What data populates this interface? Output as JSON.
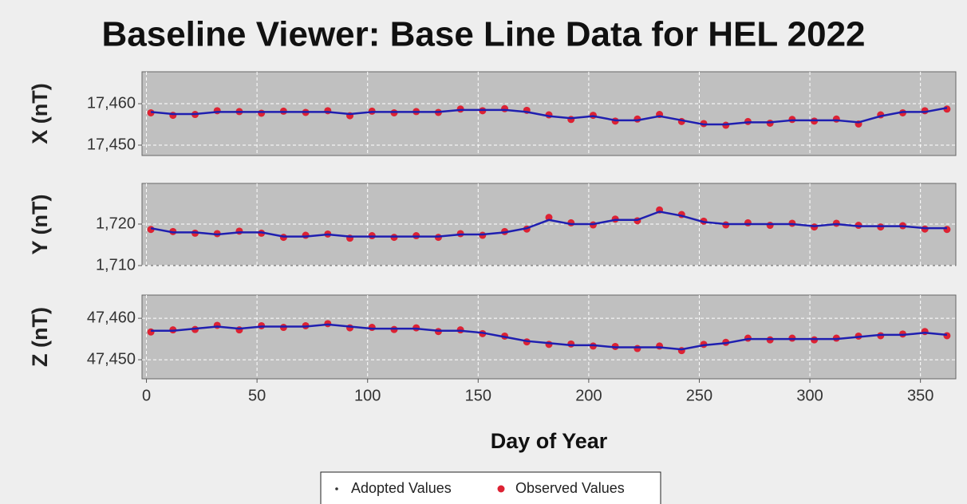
{
  "title": "Baseline Viewer: Base Line Data for HEL 2022",
  "chart_data": [
    {
      "type": "line",
      "ylabel": "X (nT)",
      "x": [
        2,
        12,
        22,
        32,
        42,
        52,
        62,
        72,
        82,
        92,
        102,
        112,
        122,
        132,
        142,
        152,
        162,
        172,
        182,
        192,
        202,
        212,
        222,
        232,
        242,
        252,
        262,
        272,
        282,
        292,
        302,
        312,
        322,
        332,
        342,
        352,
        362
      ],
      "xlim": [
        -2,
        366
      ],
      "xticks": [
        0,
        50,
        100,
        150,
        200,
        250,
        300,
        350
      ],
      "ylim": [
        17447.5,
        17467.7
      ],
      "yticks": [
        {
          "value": 17450,
          "label": "17,450"
        },
        {
          "value": 17460,
          "label": "17,460"
        }
      ],
      "grid": true,
      "series": [
        {
          "color": "#1f1fb0",
          "values": [
            17458,
            17457.5,
            17457.5,
            17458,
            17458,
            17458,
            17458,
            17458,
            17458,
            17457.5,
            17458,
            17458,
            17458,
            17458,
            17458.5,
            17458.5,
            17458.5,
            17458,
            17457,
            17456.5,
            17457,
            17456,
            17456,
            17457,
            17456,
            17455,
            17455,
            17455.5,
            17455.5,
            17456,
            17456,
            17456,
            17455.5,
            17457,
            17458,
            17458,
            17459
          ]
        },
        {
          "color": "#dd2233",
          "values": [
            17457.8,
            17457.2,
            17457.4,
            17458.3,
            17458.1,
            17457.7,
            17458.2,
            17457.9,
            17458.3,
            17457.1,
            17458.2,
            17457.8,
            17458.1,
            17457.9,
            17458.7,
            17458.3,
            17458.8,
            17458.4,
            17457.3,
            17456.2,
            17457.2,
            17455.8,
            17456.3,
            17457.4,
            17455.7,
            17455.2,
            17454.8,
            17455.7,
            17455.3,
            17456.2,
            17455.8,
            17456.3,
            17455.1,
            17457.3,
            17457.8,
            17458.3,
            17458.7
          ]
        }
      ]
    },
    {
      "type": "line",
      "ylabel": "Y (nT)",
      "x": [
        2,
        12,
        22,
        32,
        42,
        52,
        62,
        72,
        82,
        92,
        102,
        112,
        122,
        132,
        142,
        152,
        162,
        172,
        182,
        192,
        202,
        212,
        222,
        232,
        242,
        252,
        262,
        272,
        282,
        292,
        302,
        312,
        322,
        332,
        342,
        352,
        362
      ],
      "xlim": [
        -2,
        366
      ],
      "xticks": [
        0,
        50,
        100,
        150,
        200,
        250,
        300,
        350
      ],
      "ylim": [
        1710,
        1729.8
      ],
      "yticks": [
        {
          "value": 1710,
          "label": "1,710"
        },
        {
          "value": 1720,
          "label": "1,720"
        }
      ],
      "grid": true,
      "series": [
        {
          "color": "#1f1fb0",
          "values": [
            1719,
            1718,
            1718,
            1717.5,
            1718,
            1718,
            1717,
            1717,
            1717.5,
            1717,
            1717,
            1717,
            1717,
            1717,
            1717.5,
            1717.5,
            1718,
            1719,
            1721,
            1720,
            1720,
            1721,
            1721,
            1723,
            1722,
            1720.5,
            1720,
            1720,
            1720,
            1720,
            1719.5,
            1720,
            1719.5,
            1719.5,
            1719.5,
            1719,
            1719
          ]
        },
        {
          "color": "#dd2233",
          "values": [
            1718.7,
            1718.2,
            1717.8,
            1717.7,
            1718.3,
            1717.8,
            1716.8,
            1717.3,
            1717.6,
            1716.6,
            1717.2,
            1716.8,
            1717.2,
            1716.8,
            1717.7,
            1717.3,
            1718.2,
            1718.8,
            1721.6,
            1720.3,
            1719.8,
            1721.2,
            1720.8,
            1723.4,
            1722.3,
            1720.7,
            1719.8,
            1720.3,
            1719.7,
            1720.2,
            1719.3,
            1720.2,
            1719.7,
            1719.3,
            1719.6,
            1718.8,
            1718.7
          ]
        }
      ]
    },
    {
      "type": "line",
      "ylabel": "Z (nT)",
      "xlabel": "Day of Year",
      "x": [
        2,
        12,
        22,
        32,
        42,
        52,
        62,
        72,
        82,
        92,
        102,
        112,
        122,
        132,
        142,
        152,
        162,
        172,
        182,
        192,
        202,
        212,
        222,
        232,
        242,
        252,
        262,
        272,
        282,
        292,
        302,
        312,
        322,
        332,
        342,
        352,
        362
      ],
      "xlim": [
        -2,
        366
      ],
      "xticks": [
        0,
        50,
        100,
        150,
        200,
        250,
        300,
        350
      ],
      "ylim": [
        47445.4,
        47465.6
      ],
      "yticks": [
        {
          "value": 47450,
          "label": "47,450"
        },
        {
          "value": 47460,
          "label": "47,460"
        }
      ],
      "grid": true,
      "series": [
        {
          "name": "Adopted Values",
          "color": "#1f1fb0",
          "values": [
            47457,
            47457,
            47457.5,
            47458,
            47457.5,
            47458,
            47458,
            47458,
            47458.5,
            47458,
            47457.5,
            47457.5,
            47457.5,
            47457,
            47457,
            47456.5,
            47455.5,
            47454.5,
            47454,
            47453.5,
            47453.5,
            47453,
            47453,
            47453,
            47452.5,
            47453.5,
            47454,
            47455,
            47455,
            47455,
            47455,
            47455,
            47455.5,
            47456,
            47456,
            47456.5,
            47456
          ]
        },
        {
          "name": "Observed Values",
          "color": "#dd2233",
          "values": [
            47456.7,
            47457.2,
            47457.3,
            47458.3,
            47457.2,
            47458.2,
            47457.8,
            47458.2,
            47458.7,
            47457.7,
            47457.8,
            47457.3,
            47457.7,
            47456.8,
            47457.2,
            47456.3,
            47455.7,
            47454.3,
            47453.7,
            47453.8,
            47453.3,
            47453.2,
            47452.7,
            47453.3,
            47452.2,
            47453.7,
            47454.2,
            47455.2,
            47454.8,
            47455.2,
            47454.8,
            47455.2,
            47455.7,
            47455.8,
            47456.2,
            47456.8,
            47455.8
          ]
        }
      ]
    }
  ]
}
